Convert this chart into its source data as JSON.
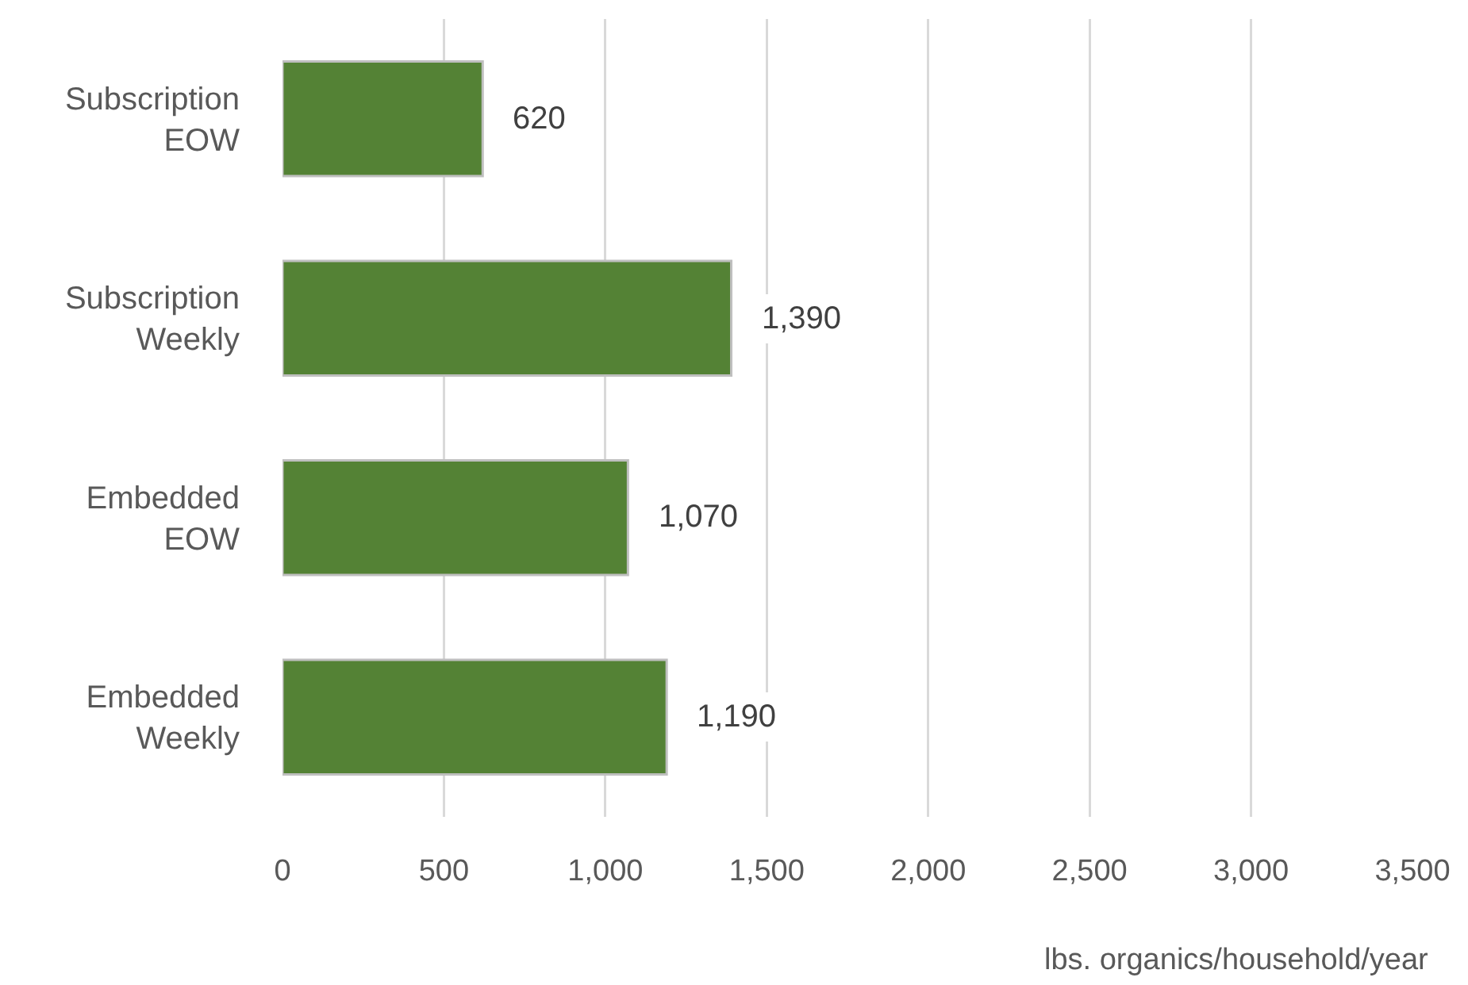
{
  "chart_data": {
    "type": "bar",
    "orientation": "horizontal",
    "categories": [
      "Subscription EOW",
      "Subscription Weekly",
      "Embedded EOW",
      "Embedded Weekly"
    ],
    "values": [
      620,
      1390,
      1070,
      1190
    ],
    "value_labels": [
      "620",
      "1,390",
      "1,070",
      "1,190"
    ],
    "color": "#548235",
    "xlabel": "lbs. organics/household/year",
    "xlim": [
      0,
      3500
    ],
    "xticks": [
      0,
      500,
      {
        "value": 1000,
        "label": "1,000"
      },
      {
        "value": 1500,
        "label": "1,500"
      },
      {
        "value": 2000,
        "label": "2,000"
      },
      {
        "value": 2500,
        "label": "2,500"
      },
      {
        "value": 3000,
        "label": "3,000"
      },
      {
        "value": 3500,
        "label": "3,500"
      }
    ],
    "grid": "x"
  }
}
